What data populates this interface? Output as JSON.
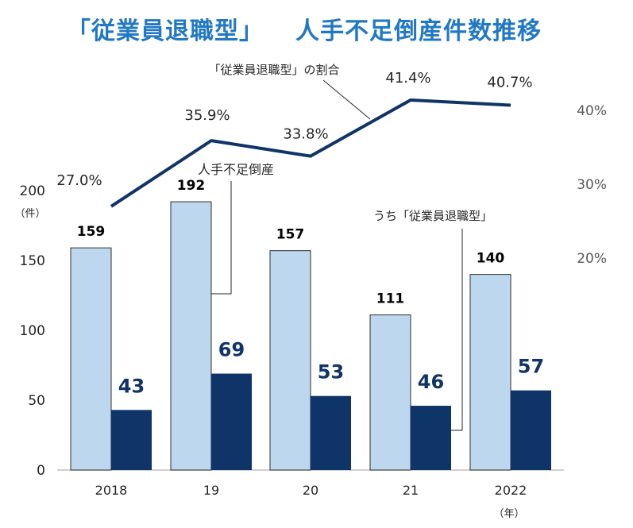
{
  "title_left": "「従業員退職型」",
  "title_right": "人手不足倒産件数推移",
  "chart_data": {
    "type": "bar+line",
    "categories": [
      "2018",
      "19",
      "20",
      "21",
      "2022"
    ],
    "x_unit_label": "（年）",
    "y_left": {
      "ticks": [
        0,
        50,
        100,
        150,
        200
      ],
      "unit_label": "（件）",
      "ylim": [
        0,
        200
      ]
    },
    "y_right": {
      "tick_labels": [
        "20%",
        "30%",
        "40%"
      ]
    },
    "series": [
      {
        "name": "人手不足倒産",
        "type": "bar",
        "color": "#bdd7ee",
        "values": [
          159,
          192,
          157,
          111,
          140
        ]
      },
      {
        "name": "うち「従業員退職型」",
        "type": "bar",
        "color": "#0f3468",
        "values": [
          43,
          69,
          53,
          46,
          57
        ]
      },
      {
        "name": "「従業員退職型」の割合",
        "type": "line",
        "color": "#0f3468",
        "values": [
          27.0,
          35.9,
          33.8,
          41.4,
          40.7
        ],
        "labels": [
          "27.0%",
          "35.9%",
          "33.8%",
          "41.4%",
          "40.7%"
        ]
      }
    ],
    "annotations": {
      "line_label": "「従業員退職型」の割合",
      "total_label": "人手不足倒産",
      "sub_label": "うち「従業員退職型」"
    }
  }
}
